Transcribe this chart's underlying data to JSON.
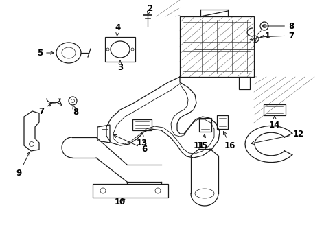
{
  "background_color": "#ffffff",
  "line_color": "#1a1a1a",
  "fig_width": 4.89,
  "fig_height": 3.6,
  "dpi": 100,
  "label_fontsize": 8.5,
  "lw": 0.9
}
